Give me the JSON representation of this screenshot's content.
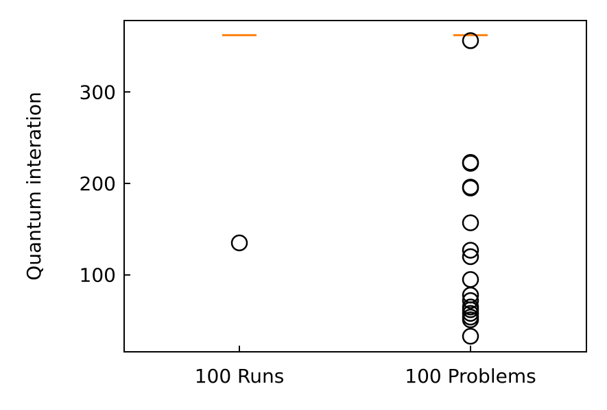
{
  "chart_data": {
    "type": "box",
    "title": "",
    "xlabel": "",
    "ylabel": "Quantum interation",
    "categories": [
      "100 Runs",
      "100 Problems"
    ],
    "ylim": [
      16,
      378
    ],
    "yticks": [
      100,
      200,
      300
    ],
    "grid": false,
    "series": [
      {
        "category": "100 Runs",
        "median": 362,
        "outliers": [
          135
        ]
      },
      {
        "category": "100 Problems",
        "median": 362,
        "outliers": [
          356,
          223,
          222,
          196,
          195,
          157,
          127,
          120,
          95,
          78,
          72,
          65,
          62,
          58,
          54,
          51,
          33
        ]
      }
    ],
    "colors": {
      "median": "#ff7f0e",
      "outlier_stroke": "#000000",
      "axes": "#000000"
    }
  }
}
